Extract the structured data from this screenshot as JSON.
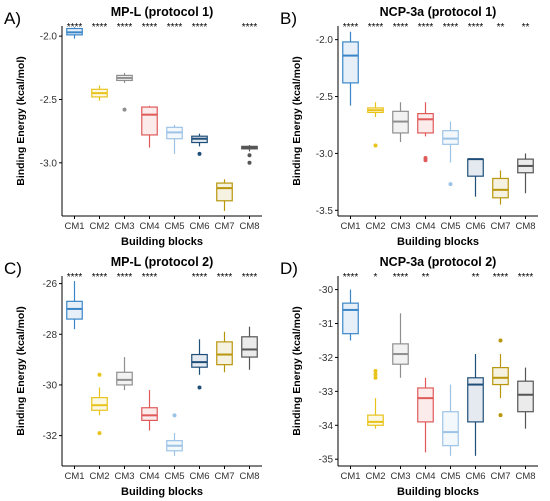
{
  "chart_data": [
    {
      "type": "box",
      "panel_label": "A)",
      "title": "MP-L (protocol 1)",
      "xlabel": "Building blocks",
      "ylabel": "Binding Energy (kcal/mol)",
      "categories": [
        "CM1",
        "CM2",
        "CM3",
        "CM4",
        "CM5",
        "CM6",
        "CM7",
        "CM8"
      ],
      "colors": [
        "#3a86c8",
        "#e8c31b",
        "#8f8f8f",
        "#e05a5a",
        "#9dc3e6",
        "#1f4e79",
        "#b8960c",
        "#555555"
      ],
      "ylim": [
        -3.42,
        -1.92
      ],
      "yticks": [
        -2.0,
        -2.5,
        -3.0
      ],
      "significance": [
        "****",
        "****",
        "****",
        "****",
        "****",
        "****",
        "",
        "****"
      ],
      "boxes": [
        {
          "min": -2.02,
          "q1": -1.99,
          "median": -1.97,
          "q3": -1.94,
          "max": -1.93,
          "outliers": []
        },
        {
          "min": -2.51,
          "q1": -2.48,
          "median": -2.45,
          "q3": -2.42,
          "max": -2.39,
          "outliers": []
        },
        {
          "min": -2.37,
          "q1": -2.35,
          "median": -2.33,
          "q3": -2.31,
          "max": -2.29,
          "outliers": [
            -2.58
          ]
        },
        {
          "min": -2.88,
          "q1": -2.78,
          "median": -2.62,
          "q3": -2.56,
          "max": -2.55,
          "outliers": []
        },
        {
          "min": -2.93,
          "q1": -2.81,
          "median": -2.76,
          "q3": -2.72,
          "max": -2.7,
          "outliers": []
        },
        {
          "min": -2.87,
          "q1": -2.84,
          "median": -2.81,
          "q3": -2.79,
          "max": -2.77,
          "outliers": [
            -2.93
          ]
        },
        {
          "min": -3.38,
          "q1": -3.3,
          "median": -3.2,
          "q3": -3.16,
          "max": -3.13,
          "outliers": []
        },
        {
          "min": -2.91,
          "q1": -2.89,
          "median": -2.88,
          "q3": -2.87,
          "max": -2.86,
          "outliers": [
            -2.94,
            -3.0
          ]
        }
      ]
    },
    {
      "type": "box",
      "panel_label": "B)",
      "title": "NCP-3a (protocol 1)",
      "xlabel": "Building blocks",
      "ylabel": "Binding Energy (kcal/mol)",
      "categories": [
        "CM1",
        "CM2",
        "CM3",
        "CM4",
        "CM5",
        "CM6",
        "CM7",
        "CM8"
      ],
      "colors": [
        "#3a86c8",
        "#e8c31b",
        "#8f8f8f",
        "#e05a5a",
        "#9dc3e6",
        "#1f4e79",
        "#b8960c",
        "#555555"
      ],
      "ylim": [
        -3.55,
        -1.88
      ],
      "yticks": [
        -2.0,
        -2.5,
        -3.0,
        -3.5
      ],
      "significance": [
        "****",
        "****",
        "****",
        "****",
        "****",
        "****",
        "**",
        "**"
      ],
      "boxes": [
        {
          "min": -2.58,
          "q1": -2.38,
          "median": -2.14,
          "q3": -2.02,
          "max": -1.93,
          "outliers": []
        },
        {
          "min": -2.68,
          "q1": -2.64,
          "median": -2.62,
          "q3": -2.6,
          "max": -2.55,
          "outliers": [
            -2.93
          ]
        },
        {
          "min": -2.9,
          "q1": -2.82,
          "median": -2.72,
          "q3": -2.63,
          "max": -2.55,
          "outliers": []
        },
        {
          "min": -2.85,
          "q1": -2.82,
          "median": -2.7,
          "q3": -2.65,
          "max": -2.55,
          "outliers": [
            -3.04,
            -3.06
          ]
        },
        {
          "min": -3.08,
          "q1": -2.92,
          "median": -2.87,
          "q3": -2.8,
          "max": -2.72,
          "outliers": [
            -3.27
          ]
        },
        {
          "min": -3.38,
          "q1": -3.2,
          "median": -3.05,
          "q3": -3.05,
          "max": -3.05,
          "outliers": []
        },
        {
          "min": -3.45,
          "q1": -3.39,
          "median": -3.32,
          "q3": -3.22,
          "max": -3.15,
          "outliers": []
        },
        {
          "min": -3.35,
          "q1": -3.17,
          "median": -3.11,
          "q3": -3.05,
          "max": -3.0,
          "outliers": []
        }
      ]
    },
    {
      "type": "box",
      "panel_label": "C)",
      "title": "MP-L (protocol 2)",
      "xlabel": "Building blocks",
      "ylabel": "Binding Energy (kcal/mol)",
      "categories": [
        "CM1",
        "CM2",
        "CM3",
        "CM4",
        "CM5",
        "CM6",
        "CM7",
        "CM8"
      ],
      "colors": [
        "#3a86c8",
        "#e8c31b",
        "#8f8f8f",
        "#e05a5a",
        "#9dc3e6",
        "#1f4e79",
        "#b8960c",
        "#555555"
      ],
      "ylim": [
        -33.2,
        -25.7
      ],
      "yticks": [
        -26,
        -28,
        -30,
        -32
      ],
      "significance": [
        "****",
        "****",
        "****",
        "****",
        "",
        "****",
        "****",
        "****"
      ],
      "boxes": [
        {
          "min": -27.8,
          "q1": -27.4,
          "median": -27.0,
          "q3": -26.7,
          "max": -25.9,
          "outliers": []
        },
        {
          "min": -31.2,
          "q1": -31.0,
          "median": -30.8,
          "q3": -30.5,
          "max": -30.1,
          "outliers": [
            -29.6,
            -31.9
          ]
        },
        {
          "min": -30.2,
          "q1": -30.0,
          "median": -29.8,
          "q3": -29.5,
          "max": -28.9,
          "outliers": []
        },
        {
          "min": -31.8,
          "q1": -31.4,
          "median": -31.2,
          "q3": -30.9,
          "max": -30.2,
          "outliers": []
        },
        {
          "min": -32.8,
          "q1": -32.6,
          "median": -32.4,
          "q3": -32.2,
          "max": -31.9,
          "outliers": [
            -31.2
          ]
        },
        {
          "min": -29.6,
          "q1": -29.3,
          "median": -29.1,
          "q3": -28.8,
          "max": -28.2,
          "outliers": [
            -30.1
          ]
        },
        {
          "min": -29.5,
          "q1": -29.2,
          "median": -28.8,
          "q3": -28.3,
          "max": -27.9,
          "outliers": []
        },
        {
          "min": -29.4,
          "q1": -28.9,
          "median": -28.6,
          "q3": -28.1,
          "max": -27.7,
          "outliers": []
        }
      ]
    },
    {
      "type": "box",
      "panel_label": "D)",
      "title": "NCP-3a (protocol 2)",
      "xlabel": "Building blocks",
      "ylabel": "Binding Energy (kcal/mol)",
      "categories": [
        "CM1",
        "CM2",
        "CM3",
        "CM4",
        "CM5",
        "CM6",
        "CM7",
        "CM8"
      ],
      "colors": [
        "#3a86c8",
        "#e8c31b",
        "#8f8f8f",
        "#e05a5a",
        "#9dc3e6",
        "#1f4e79",
        "#b8960c",
        "#555555"
      ],
      "ylim": [
        -35.2,
        -29.6
      ],
      "yticks": [
        -30,
        -31,
        -32,
        -33,
        -34,
        -35
      ],
      "significance": [
        "****",
        "*",
        "****",
        "**",
        "",
        "**",
        "****",
        "****"
      ],
      "boxes": [
        {
          "min": -31.5,
          "q1": -31.3,
          "median": -30.6,
          "q3": -30.4,
          "max": -30.0,
          "outliers": []
        },
        {
          "min": -34.1,
          "q1": -34.0,
          "median": -33.9,
          "q3": -33.7,
          "max": -33.2,
          "outliers": [
            -32.4,
            -32.5,
            -32.6
          ]
        },
        {
          "min": -32.6,
          "q1": -32.2,
          "median": -31.9,
          "q3": -31.6,
          "max": -30.7,
          "outliers": []
        },
        {
          "min": -34.8,
          "q1": -33.9,
          "median": -33.2,
          "q3": -32.9,
          "max": -32.6,
          "outliers": []
        },
        {
          "min": -34.9,
          "q1": -34.6,
          "median": -34.2,
          "q3": -33.6,
          "max": -32.8,
          "outliers": []
        },
        {
          "min": -34.9,
          "q1": -33.9,
          "median": -32.8,
          "q3": -32.6,
          "max": -31.9,
          "outliers": []
        },
        {
          "min": -33.2,
          "q1": -32.8,
          "median": -32.6,
          "q3": -32.3,
          "max": -31.9,
          "outliers": [
            -33.7,
            -31.5
          ]
        },
        {
          "min": -34.1,
          "q1": -33.6,
          "median": -33.1,
          "q3": -32.7,
          "max": -32.3,
          "outliers": []
        }
      ]
    }
  ]
}
